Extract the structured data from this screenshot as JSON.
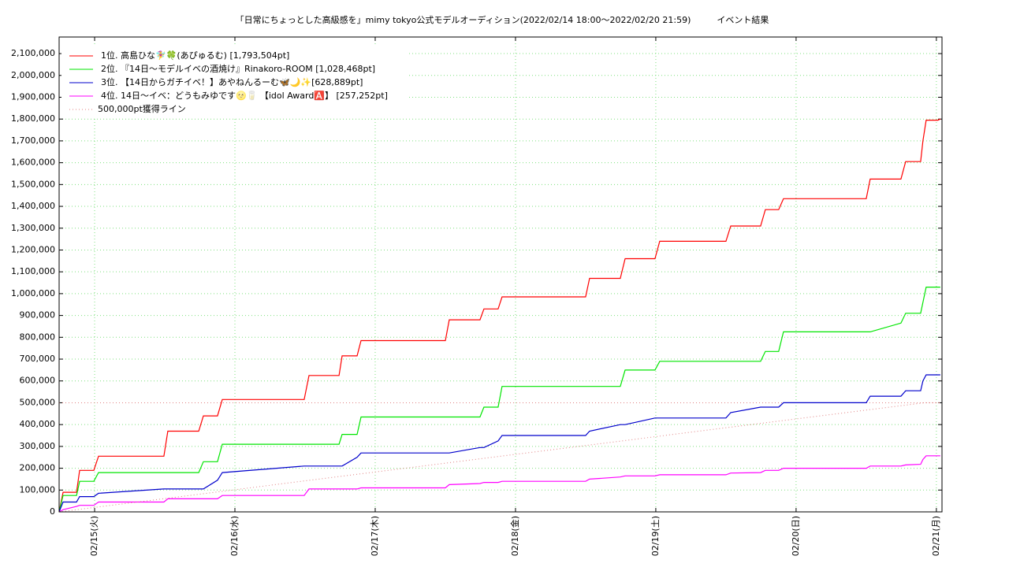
{
  "chart_data": {
    "type": "line",
    "title": "「日常にちょっとした高級感を」mimy tokyo公式モデルオーディション(2022/02/14 18:00〜2022/02/20 21:59)　　　イベント結果",
    "x": [
      14.747,
      14.775,
      14.871,
      14.893,
      14.994,
      15.028,
      15.494,
      15.522,
      15.742,
      15.775,
      15.876,
      15.91,
      16.494,
      16.528,
      16.742,
      16.764,
      16.871,
      16.899,
      17.5,
      17.528,
      17.747,
      17.775,
      17.876,
      17.904,
      18.5,
      18.528,
      18.747,
      18.781,
      18.994,
      19.028,
      19.5,
      19.534,
      19.747,
      19.781,
      19.876,
      19.91,
      20.5,
      20.528,
      20.747,
      20.781,
      20.888,
      20.904,
      20.927,
      21.011,
      21.028
    ],
    "series": [
      {
        "name": "1位. 高島ひな🧚‍♀️🍀(あぴゅるむ) [1,793,504pt]",
        "color": "#ff0000",
        "values": [
          0,
          90000,
          90000,
          190000,
          190000,
          255000,
          255000,
          370000,
          370000,
          440000,
          440000,
          515000,
          515000,
          625000,
          625000,
          715000,
          715000,
          785000,
          785000,
          880000,
          880000,
          930000,
          930000,
          985000,
          985000,
          1070000,
          1070000,
          1160000,
          1160000,
          1240000,
          1240000,
          1310000,
          1310000,
          1385000,
          1385000,
          1435000,
          1435000,
          1525000,
          1525000,
          1605000,
          1605000,
          1700000,
          1795000,
          1795000,
          1800000
        ]
      },
      {
        "name": "2位. 『14日〜モデルイベの酒焼け』Rinakoro-ROOM [1,028,468pt]",
        "color": "#00e600",
        "values": [
          0,
          75000,
          75000,
          140000,
          140000,
          180000,
          180000,
          180000,
          180000,
          230000,
          230000,
          310000,
          310000,
          310000,
          310000,
          355000,
          355000,
          435000,
          435000,
          435000,
          435000,
          480000,
          480000,
          575000,
          575000,
          575000,
          575000,
          650000,
          650000,
          690000,
          690000,
          690000,
          690000,
          735000,
          735000,
          825000,
          825000,
          825000,
          865000,
          910000,
          910000,
          960000,
          1030000,
          1030000,
          1030000
        ]
      },
      {
        "name": "3位. 【14日からガチイベ！】あやねんるーむ🦋🌙✨[628,889pt]",
        "color": "#0000cc",
        "values": [
          0,
          45000,
          45000,
          70000,
          70000,
          85000,
          105000,
          105000,
          105000,
          105000,
          145000,
          180000,
          210000,
          210000,
          210000,
          210000,
          250000,
          270000,
          270000,
          270000,
          295000,
          295000,
          325000,
          350000,
          350000,
          370000,
          400000,
          400000,
          430000,
          430000,
          430000,
          455000,
          480000,
          480000,
          480000,
          500000,
          500000,
          530000,
          530000,
          555000,
          555000,
          600000,
          628000,
          628000,
          628000
        ]
      },
      {
        "name": "4位. 14日〜イベ：どうもみゆです🌝🥛 【idol Award🅰️】 [257,252pt]",
        "color": "#ff00ff",
        "values": [
          0,
          10000,
          25000,
          30000,
          30000,
          45000,
          45000,
          60000,
          60000,
          60000,
          60000,
          75000,
          75000,
          105000,
          105000,
          105000,
          105000,
          110000,
          110000,
          125000,
          130000,
          135000,
          135000,
          140000,
          140000,
          150000,
          160000,
          165000,
          165000,
          170000,
          170000,
          178000,
          180000,
          190000,
          190000,
          200000,
          200000,
          210000,
          210000,
          215000,
          218000,
          240000,
          257000,
          257000,
          257000
        ]
      },
      {
        "name": "500,000pt獲得ライン",
        "color": "#e08080",
        "dotted": true,
        "x": [
          14.747,
          20.916,
          21.028
        ],
        "values": [
          0,
          500000,
          500000
        ]
      }
    ],
    "reference_line": 500000,
    "xlim": [
      14.747,
      21.04
    ],
    "xticks": [
      {
        "value": 15,
        "label": "02/15(火)"
      },
      {
        "value": 16,
        "label": "02/16(水)"
      },
      {
        "value": 17,
        "label": "02/17(木)"
      },
      {
        "value": 18,
        "label": "02/18(金)"
      },
      {
        "value": 19,
        "label": "02/19(土)"
      },
      {
        "value": 20,
        "label": "02/20(日)"
      },
      {
        "value": 21,
        "label": "02/21(月)"
      }
    ],
    "ylim": [
      0,
      2176000
    ],
    "yticks": [
      0,
      {
        "value": 100000,
        "label": "100,000"
      },
      {
        "value": 200000,
        "label": "200,000"
      },
      {
        "value": 300000,
        "label": "300,000"
      },
      {
        "value": 400000,
        "label": "400,000"
      },
      {
        "value": 500000,
        "label": "500,000"
      },
      {
        "value": 600000,
        "label": "600,000"
      },
      {
        "value": 700000,
        "label": "700,000"
      },
      {
        "value": 800000,
        "label": "800,000"
      },
      {
        "value": 900000,
        "label": "900,000"
      },
      {
        "value": 1000000,
        "label": "1,000,000"
      },
      {
        "value": 1100000,
        "label": "1,100,000"
      },
      {
        "value": 1200000,
        "label": "1,200,000"
      },
      {
        "value": 1300000,
        "label": "1,300,000"
      },
      {
        "value": 1400000,
        "label": "1,400,000"
      },
      {
        "value": 1500000,
        "label": "1,500,000"
      },
      {
        "value": 1600000,
        "label": "1,600,000"
      },
      {
        "value": 1700000,
        "label": "1,700,000"
      },
      {
        "value": 1800000,
        "label": "1,800,000"
      },
      {
        "value": 1900000,
        "label": "1,900,000"
      },
      {
        "value": 2000000,
        "label": "2,000,000"
      },
      {
        "value": 2100000,
        "label": "2,100,000"
      }
    ],
    "grid": true,
    "legend": "upper-left"
  }
}
